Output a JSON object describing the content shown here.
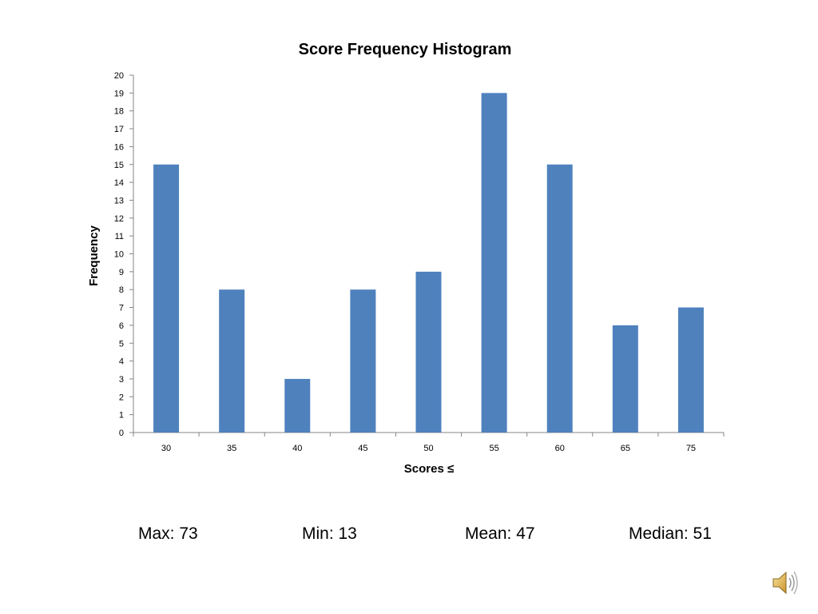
{
  "chart_data": {
    "type": "bar",
    "title": "Score Frequency Histogram",
    "xlabel": "Scores ≤",
    "ylabel": "Frequency",
    "categories": [
      "30",
      "35",
      "40",
      "45",
      "50",
      "55",
      "60",
      "65",
      "75"
    ],
    "values": [
      15,
      8,
      3,
      8,
      9,
      19,
      15,
      6,
      7
    ],
    "ylim": [
      0,
      20
    ],
    "yticks": [
      0,
      1,
      2,
      3,
      4,
      5,
      6,
      7,
      8,
      9,
      10,
      11,
      12,
      13,
      14,
      15,
      16,
      17,
      18,
      19,
      20
    ],
    "grid": false,
    "legend": "none",
    "bar_color": "#4f81bd"
  },
  "stats": {
    "max": "Max: 73",
    "min": "Min: 13",
    "mean": "Mean: 47",
    "median": "Median: 51"
  },
  "audio": {
    "icon": "speaker-icon"
  }
}
